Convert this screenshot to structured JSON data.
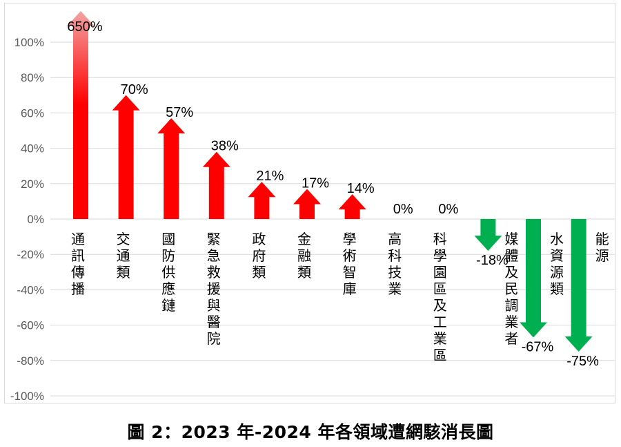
{
  "caption": "圖 2：2023 年-2024 年各領域遭網駭消長圖",
  "chart_data": {
    "type": "bar",
    "title": "",
    "xlabel": "",
    "ylabel": "",
    "ylim": [
      -100,
      100
    ],
    "yticks": [
      100,
      80,
      60,
      40,
      20,
      0,
      -20,
      -40,
      -60,
      -80,
      -100
    ],
    "ytick_suffix": "%",
    "grid": true,
    "categories": [
      "通訊傳播",
      "交通類",
      "國防供應鏈",
      "緊急救援與醫院",
      "政府類",
      "金融類",
      "學術智庫",
      "高科技業",
      "科學園區及工業區",
      "媒體及民調業者",
      "水資源類",
      "能源"
    ],
    "values": [
      650,
      70,
      57,
      38,
      21,
      17,
      14,
      0,
      0,
      -18,
      -67,
      -75
    ],
    "value_labels": [
      "650%",
      "70%",
      "57%",
      "38%",
      "21%",
      "17%",
      "14%",
      "0%",
      "0%",
      "-18%",
      "-67%",
      "-75%"
    ],
    "colors": {
      "positive": "#ff0000",
      "negative": "#00b050",
      "overflow_fade": "#f4a3a3",
      "grid": "#d9d9d9"
    }
  }
}
